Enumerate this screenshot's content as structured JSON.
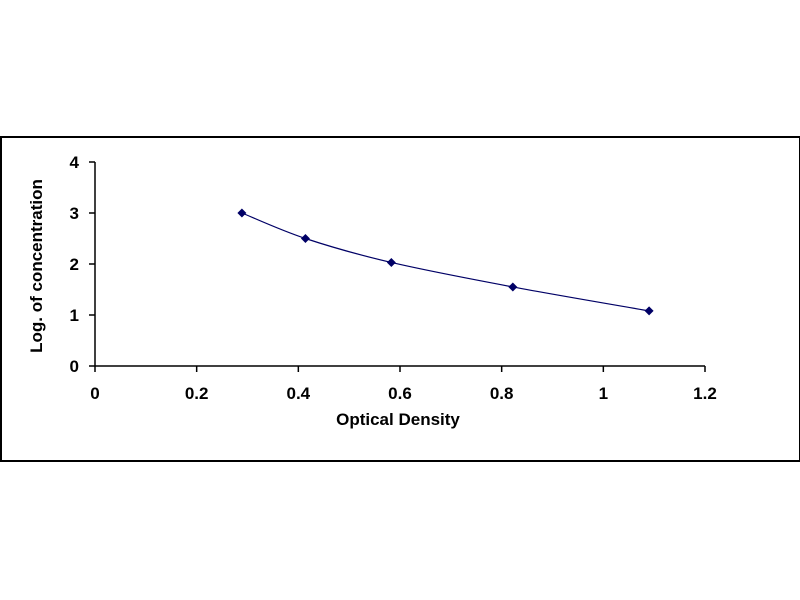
{
  "chart_data": {
    "type": "scatter",
    "title": "",
    "xlabel": "Optical Density",
    "ylabel": "Log. of concentration",
    "xlim": [
      0,
      1.2
    ],
    "ylim": [
      0,
      4
    ],
    "xticks": [
      "0",
      "0.2",
      "0.4",
      "0.6",
      "0.8",
      "1",
      "1.2"
    ],
    "yticks": [
      "0",
      "1",
      "2",
      "3",
      "4"
    ],
    "grid": false,
    "legend": "none",
    "fit": "smooth curve through points",
    "series": [
      {
        "x": [
          0.289,
          0.414,
          0.583,
          0.822,
          1.09
        ],
        "y": [
          3.0,
          2.5,
          2.03,
          1.55,
          1.08
        ]
      }
    ],
    "colors": {
      "marker": "#000066",
      "line": "#000066",
      "axis": "#000000",
      "frame": "#000000"
    }
  }
}
